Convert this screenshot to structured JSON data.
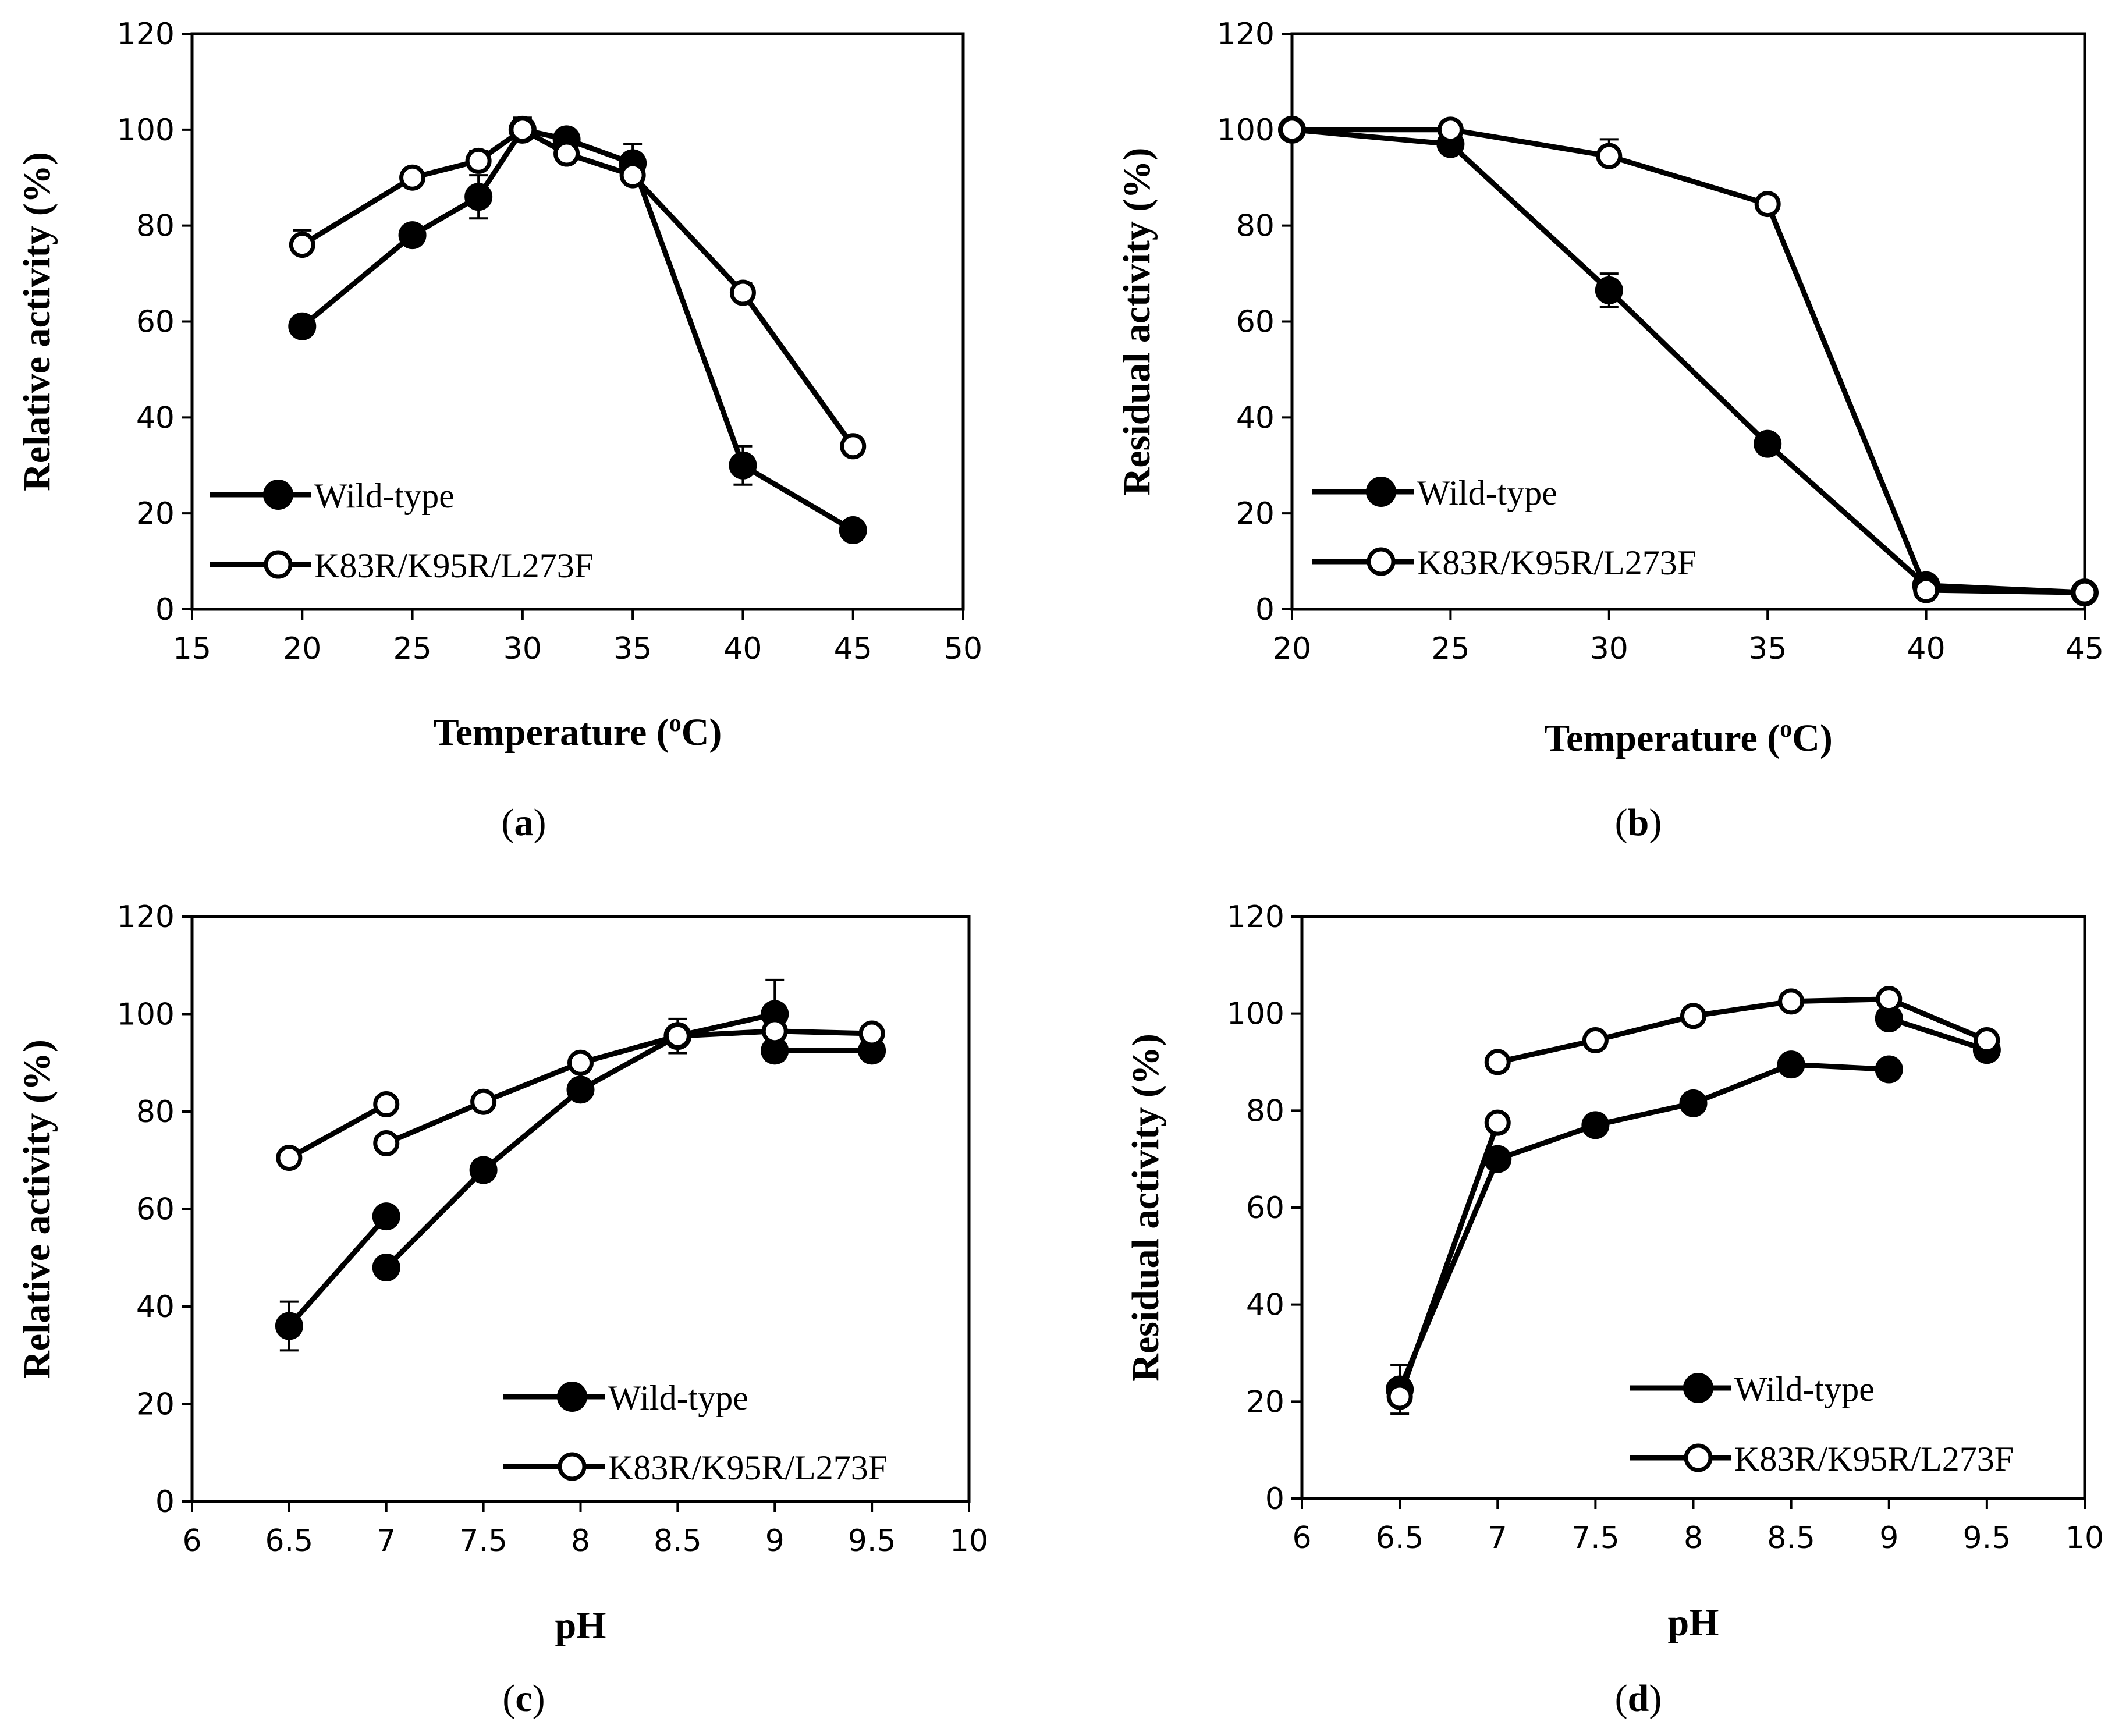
{
  "chart_data": [
    {
      "id": "a",
      "type": "line",
      "panel_label": "a",
      "xlabel_main": "Temperature (",
      "xlabel_sup": "o",
      "xlabel_tail": "C)",
      "ylabel": "Relative activity (%)",
      "xlim": [
        15,
        50
      ],
      "ylim": [
        0,
        120
      ],
      "x_ticks": [
        15,
        20,
        25,
        30,
        35,
        40,
        45,
        50
      ],
      "y_ticks": [
        0,
        20,
        40,
        60,
        80,
        100,
        120
      ],
      "x_tick_labels": [
        "15",
        "20",
        "25",
        "30",
        "35",
        "40",
        "45",
        "50"
      ],
      "y_tick_labels": [
        "0",
        "20",
        "40",
        "60",
        "80",
        "100",
        "120"
      ],
      "legend_position": "bottom-left",
      "series": [
        {
          "name": "Wild-type",
          "marker": "filled-circle",
          "x": [
            20,
            25,
            28,
            30,
            32,
            35,
            40,
            45
          ],
          "y": [
            59,
            78,
            86,
            100,
            98,
            93,
            30,
            16.5
          ],
          "err": [
            0,
            0,
            4.5,
            2,
            2,
            4,
            4,
            0
          ]
        },
        {
          "name": "K83R/K95R/L273F",
          "marker": "open-circle",
          "x": [
            20,
            25,
            28,
            30,
            32,
            35,
            40,
            45
          ],
          "y": [
            76,
            90,
            93.5,
            100,
            95,
            90.5,
            66,
            34
          ],
          "err": [
            3,
            0,
            2,
            2.5,
            0,
            0,
            2,
            0
          ]
        }
      ]
    },
    {
      "id": "b",
      "type": "line",
      "panel_label": "b",
      "xlabel_main": "Temperature (",
      "xlabel_sup": "o",
      "xlabel_tail": "C)",
      "ylabel": "Residual activity (%)",
      "xlim": [
        20,
        45
      ],
      "ylim": [
        0,
        120
      ],
      "x_ticks": [
        20,
        25,
        30,
        35,
        40,
        45
      ],
      "y_ticks": [
        0,
        20,
        40,
        60,
        80,
        100,
        120
      ],
      "x_tick_labels": [
        "20",
        "25",
        "30",
        "35",
        "40",
        "45"
      ],
      "y_tick_labels": [
        "0",
        "20",
        "40",
        "60",
        "80",
        "100",
        "120"
      ],
      "legend_position": "bottom-left",
      "series": [
        {
          "name": "Wild-type",
          "marker": "filled-circle",
          "x": [
            20,
            25,
            30,
            35,
            40,
            45
          ],
          "y": [
            100,
            97,
            66.5,
            34.5,
            5,
            3.5
          ],
          "err": [
            0,
            0,
            3.5,
            0,
            0,
            0
          ]
        },
        {
          "name": "K83R/K95R/L273F",
          "marker": "open-circle",
          "x": [
            20,
            25,
            30,
            35,
            40,
            45
          ],
          "y": [
            100,
            100,
            94.5,
            84.5,
            4,
            3.5
          ],
          "err": [
            0,
            0,
            3.5,
            0,
            0,
            0
          ]
        }
      ]
    },
    {
      "id": "c",
      "type": "line",
      "panel_label": "c",
      "xlabel_main": "pH",
      "xlabel_sup": "",
      "xlabel_tail": "",
      "ylabel": "Relative activity (%)",
      "xlim": [
        6,
        10
      ],
      "ylim": [
        0,
        120
      ],
      "x_ticks": [
        6,
        6.5,
        7,
        7.5,
        8,
        8.5,
        9,
        9.5,
        10
      ],
      "y_ticks": [
        0,
        20,
        40,
        60,
        80,
        100,
        120
      ],
      "x_tick_labels": [
        "6",
        "6.5",
        "7",
        "7.5",
        "8",
        "8.5",
        "9",
        "9.5",
        "10"
      ],
      "y_tick_labels": [
        "0",
        "20",
        "40",
        "60",
        "80",
        "100",
        "120"
      ],
      "legend_position": "bottom-right",
      "series": [
        {
          "name": "Wild-type",
          "marker": "filled-circle",
          "x": [
            6.5,
            7,
            null,
            7,
            7.5,
            8,
            8.5,
            9,
            null,
            9,
            9.5
          ],
          "y": [
            36,
            58.5,
            null,
            48,
            68,
            84.5,
            95.5,
            100,
            null,
            92.5,
            92.5
          ],
          "err": [
            5,
            0,
            0,
            0,
            2,
            2,
            3.5,
            7,
            0,
            2,
            0
          ]
        },
        {
          "name": "K83R/K95R/L273F",
          "marker": "open-circle",
          "x": [
            6.5,
            7,
            null,
            7,
            7.5,
            8,
            8.5,
            9,
            9.5
          ],
          "y": [
            70.5,
            81.5,
            null,
            73.5,
            82,
            90,
            95.5,
            96.5,
            96
          ],
          "err": [
            0,
            0,
            0,
            0,
            0,
            0,
            0,
            0,
            0
          ]
        }
      ]
    },
    {
      "id": "d",
      "type": "line",
      "panel_label": "d",
      "xlabel_main": "pH",
      "xlabel_sup": "",
      "xlabel_tail": "",
      "ylabel": "Residual activity (%)",
      "xlim": [
        6,
        10
      ],
      "ylim": [
        0,
        120
      ],
      "x_ticks": [
        6,
        6.5,
        7,
        7.5,
        8,
        8.5,
        9,
        9.5,
        10
      ],
      "y_ticks": [
        0,
        20,
        40,
        60,
        80,
        100,
        120
      ],
      "x_tick_labels": [
        "6",
        "6.5",
        "7",
        "7.5",
        "8",
        "8.5",
        "9",
        "9.5",
        "10"
      ],
      "y_tick_labels": [
        "0",
        "20",
        "40",
        "60",
        "80",
        "100",
        "120"
      ],
      "legend_position": "bottom-right",
      "series": [
        {
          "name": "Wild-type",
          "marker": "filled-circle",
          "x": [
            6.5,
            7,
            7.5,
            8,
            8.5,
            9,
            null,
            9,
            9.5
          ],
          "y": [
            22.5,
            70,
            77,
            81.5,
            89.5,
            88.5,
            null,
            99,
            92.5
          ],
          "err": [
            5,
            0,
            0,
            0,
            0,
            0,
            0,
            0,
            0
          ]
        },
        {
          "name": "K83R/K95R/L273F",
          "marker": "open-circle",
          "x": [
            6.5,
            7,
            null,
            7,
            7.5,
            8,
            8.5,
            9,
            9.5
          ],
          "y": [
            21,
            77.5,
            null,
            90,
            94.5,
            99.5,
            102.5,
            103,
            94.5
          ],
          "err": [
            2,
            0,
            0,
            0,
            0,
            0,
            0,
            0,
            0
          ]
        }
      ]
    }
  ]
}
